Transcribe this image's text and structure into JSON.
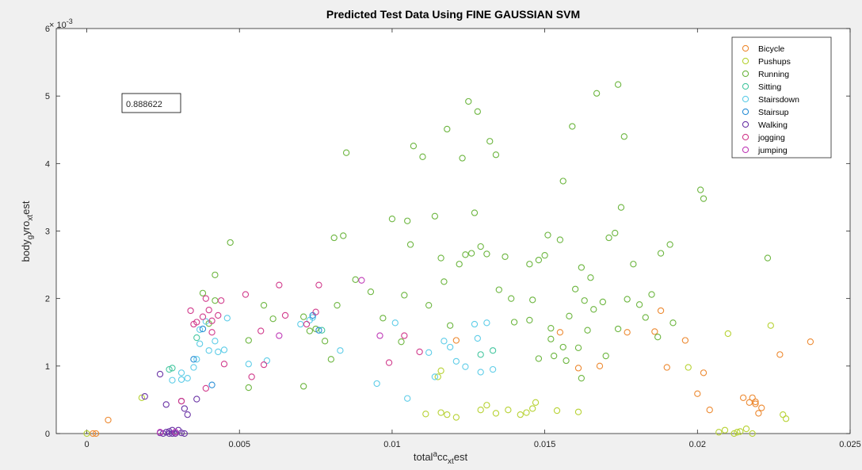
{
  "chart_data": {
    "type": "scatter",
    "title": "Predicted Test Data Using FINE GAUSSIAN SVM",
    "xlabel": "total_acc_x_test",
    "xlabel_parts": {
      "a": "total",
      "b": "a",
      "c": "cc",
      "d": "xt",
      "e": "est"
    },
    "ylabel": "body_gyro_x_test",
    "ylabel_parts": {
      "a": "body",
      "b": "g",
      "c": "yro",
      "d": "xt",
      "e": "est"
    },
    "y_exponent_base": "× 10",
    "y_exponent_power": "-3",
    "xlim": [
      -0.001,
      0.025
    ],
    "ylim": [
      0,
      6
    ],
    "y_multiplier": 0.001,
    "x_ticks": [
      0,
      0.005,
      0.01,
      0.015,
      0.02,
      0.025
    ],
    "x_tick_labels": [
      "0",
      "0.005",
      "0.01",
      "0.015",
      "0.02",
      "0.025"
    ],
    "y_ticks": [
      0,
      1,
      2,
      3,
      4,
      5,
      6
    ],
    "y_tick_labels": [
      "0",
      "1",
      "2",
      "3",
      "4",
      "5",
      "6"
    ],
    "grid": false,
    "legend_position": "top-right",
    "annotation": "0.888622",
    "series": [
      {
        "name": "Bicycle",
        "color": "#ed8a32",
        "points": [
          [
            0.0002,
            0
          ],
          [
            0.0003,
            0
          ],
          [
            0.0007,
            0.2
          ],
          [
            0.0121,
            1.38
          ],
          [
            0.0155,
            1.5
          ],
          [
            0.0161,
            0.97
          ],
          [
            0.0168,
            1.0
          ],
          [
            0.0177,
            1.5
          ],
          [
            0.0186,
            1.51
          ],
          [
            0.0188,
            1.82
          ],
          [
            0.019,
            0.98
          ],
          [
            0.0196,
            1.38
          ],
          [
            0.02,
            0.59
          ],
          [
            0.0202,
            0.9
          ],
          [
            0.0204,
            0.35
          ],
          [
            0.0215,
            0.53
          ],
          [
            0.0217,
            0.46
          ],
          [
            0.0218,
            0.53
          ],
          [
            0.0219,
            0.44
          ],
          [
            0.022,
            0.3
          ],
          [
            0.0221,
            0.38
          ],
          [
            0.0227,
            1.17
          ],
          [
            0.0237,
            1.36
          ],
          [
            0.0219,
            0.47
          ]
        ]
      },
      {
        "name": "Pushups",
        "color": "#b7d234",
        "points": [
          [
            0.0,
            0
          ],
          [
            0.0018,
            0.53
          ],
          [
            0.0111,
            0.29
          ],
          [
            0.0116,
            0.31
          ],
          [
            0.0118,
            0.28
          ],
          [
            0.0121,
            0.24
          ],
          [
            0.0129,
            0.35
          ],
          [
            0.0131,
            0.42
          ],
          [
            0.0134,
            0.3
          ],
          [
            0.0138,
            0.35
          ],
          [
            0.0142,
            0.28
          ],
          [
            0.0144,
            0.31
          ],
          [
            0.0146,
            0.37
          ],
          [
            0.0147,
            0.46
          ],
          [
            0.0154,
            0.34
          ],
          [
            0.0161,
            0.32
          ],
          [
            0.0197,
            0.98
          ],
          [
            0.021,
            1.48
          ],
          [
            0.0214,
            0.03
          ],
          [
            0.0216,
            0.07
          ],
          [
            0.0218,
            0.0
          ],
          [
            0.0224,
            1.6
          ],
          [
            0.0228,
            0.28
          ],
          [
            0.0229,
            0.22
          ],
          [
            0.0207,
            0.02
          ],
          [
            0.0209,
            0.05
          ],
          [
            0.0212,
            0.0
          ],
          [
            0.0213,
            0.02
          ],
          [
            0.0116,
            0.93
          ],
          [
            0.0115,
            0.84
          ]
        ]
      },
      {
        "name": "Running",
        "color": "#6db640",
        "points": [
          [
            0.0047,
            2.83
          ],
          [
            0.0042,
            2.35
          ],
          [
            0.0038,
            2.08
          ],
          [
            0.0042,
            1.97
          ],
          [
            0.004,
            1.63
          ],
          [
            0.0058,
            1.9
          ],
          [
            0.0053,
            1.38
          ],
          [
            0.0053,
            0.68
          ],
          [
            0.0061,
            1.7
          ],
          [
            0.0071,
            1.73
          ],
          [
            0.0071,
            0.7
          ],
          [
            0.0073,
            1.52
          ],
          [
            0.0075,
            1.55
          ],
          [
            0.0078,
            1.37
          ],
          [
            0.008,
            1.1
          ],
          [
            0.0082,
            1.9
          ],
          [
            0.0081,
            2.9
          ],
          [
            0.0084,
            2.93
          ],
          [
            0.0085,
            4.16
          ],
          [
            0.0088,
            2.28
          ],
          [
            0.0093,
            2.1
          ],
          [
            0.0097,
            1.71
          ],
          [
            0.01,
            3.18
          ],
          [
            0.0103,
            1.36
          ],
          [
            0.0104,
            2.05
          ],
          [
            0.0105,
            3.15
          ],
          [
            0.0106,
            2.8
          ],
          [
            0.0107,
            4.26
          ],
          [
            0.011,
            4.1
          ],
          [
            0.0112,
            1.9
          ],
          [
            0.0114,
            3.22
          ],
          [
            0.0116,
            2.6
          ],
          [
            0.0117,
            2.25
          ],
          [
            0.0118,
            4.51
          ],
          [
            0.0119,
            1.6
          ],
          [
            0.0122,
            2.51
          ],
          [
            0.0123,
            4.08
          ],
          [
            0.0124,
            2.65
          ],
          [
            0.0125,
            4.92
          ],
          [
            0.0126,
            2.67
          ],
          [
            0.0127,
            3.27
          ],
          [
            0.0128,
            4.77
          ],
          [
            0.0129,
            2.77
          ],
          [
            0.0131,
            2.66
          ],
          [
            0.0132,
            4.33
          ],
          [
            0.0134,
            4.13
          ],
          [
            0.0135,
            2.13
          ],
          [
            0.0137,
            2.62
          ],
          [
            0.0139,
            2.0
          ],
          [
            0.014,
            1.65
          ],
          [
            0.0145,
            2.51
          ],
          [
            0.0146,
            1.98
          ],
          [
            0.0148,
            2.57
          ],
          [
            0.015,
            2.64
          ],
          [
            0.0151,
            2.94
          ],
          [
            0.0152,
            1.4
          ],
          [
            0.0153,
            1.15
          ],
          [
            0.0155,
            2.87
          ],
          [
            0.0156,
            3.74
          ],
          [
            0.0157,
            1.08
          ],
          [
            0.0158,
            1.74
          ],
          [
            0.0159,
            4.55
          ],
          [
            0.016,
            2.14
          ],
          [
            0.0161,
            1.27
          ],
          [
            0.0162,
            2.46
          ],
          [
            0.0163,
            1.97
          ],
          [
            0.0164,
            1.53
          ],
          [
            0.0165,
            2.31
          ],
          [
            0.0166,
            1.84
          ],
          [
            0.0167,
            5.04
          ],
          [
            0.0169,
            1.95
          ],
          [
            0.017,
            1.15
          ],
          [
            0.0171,
            2.9
          ],
          [
            0.0173,
            2.97
          ],
          [
            0.0174,
            5.17
          ],
          [
            0.0174,
            1.55
          ],
          [
            0.0175,
            3.35
          ],
          [
            0.0176,
            4.4
          ],
          [
            0.0177,
            1.99
          ],
          [
            0.0179,
            2.51
          ],
          [
            0.0181,
            1.91
          ],
          [
            0.0183,
            1.72
          ],
          [
            0.0185,
            2.06
          ],
          [
            0.0187,
            1.43
          ],
          [
            0.0188,
            2.67
          ],
          [
            0.0191,
            2.8
          ],
          [
            0.0192,
            1.64
          ],
          [
            0.0201,
            3.61
          ],
          [
            0.0202,
            3.48
          ],
          [
            0.0223,
            2.6
          ],
          [
            0.0162,
            0.82
          ],
          [
            0.0145,
            1.68
          ],
          [
            0.0148,
            1.11
          ],
          [
            0.0152,
            1.56
          ],
          [
            0.0156,
            1.28
          ]
        ]
      },
      {
        "name": "Sitting",
        "color": "#46c7a0",
        "points": [
          [
            0.0027,
            0.95
          ],
          [
            0.0028,
            0.97
          ],
          [
            0.0036,
            1.42
          ],
          [
            0.0077,
            1.53
          ],
          [
            0.0129,
            1.17
          ],
          [
            0.0133,
            1.23
          ]
        ]
      },
      {
        "name": "Stairsdown",
        "color": "#5fcde8",
        "points": [
          [
            0.0028,
            0.79
          ],
          [
            0.0031,
            0.8
          ],
          [
            0.0031,
            0.9
          ],
          [
            0.0033,
            0.82
          ],
          [
            0.0035,
            0.98
          ],
          [
            0.0036,
            1.1
          ],
          [
            0.0037,
            1.33
          ],
          [
            0.0037,
            1.54
          ],
          [
            0.0039,
            1.66
          ],
          [
            0.004,
            1.23
          ],
          [
            0.0042,
            1.37
          ],
          [
            0.0043,
            1.21
          ],
          [
            0.0045,
            1.24
          ],
          [
            0.0046,
            1.71
          ],
          [
            0.0053,
            1.03
          ],
          [
            0.0059,
            1.08
          ],
          [
            0.007,
            1.62
          ],
          [
            0.0073,
            1.68
          ],
          [
            0.0074,
            1.72
          ],
          [
            0.0083,
            1.23
          ],
          [
            0.0095,
            0.74
          ],
          [
            0.0101,
            1.64
          ],
          [
            0.0105,
            0.52
          ],
          [
            0.0112,
            1.2
          ],
          [
            0.0114,
            0.84
          ],
          [
            0.0119,
            1.28
          ],
          [
            0.0121,
            1.07
          ],
          [
            0.0124,
            0.99
          ],
          [
            0.0127,
            1.62
          ],
          [
            0.0129,
            0.91
          ],
          [
            0.0131,
            1.64
          ],
          [
            0.0133,
            0.95
          ],
          [
            0.0128,
            1.41
          ],
          [
            0.0117,
            1.37
          ]
        ]
      },
      {
        "name": "Stairsup",
        "color": "#2b8fd6",
        "points": [
          [
            0.0035,
            1.1
          ],
          [
            0.0038,
            1.55
          ],
          [
            0.0041,
            0.72
          ],
          [
            0.0074,
            1.75
          ],
          [
            0.0076,
            1.53
          ]
        ]
      },
      {
        "name": "Walking",
        "color": "#6b35a6",
        "points": [
          [
            0.0019,
            0.55
          ],
          [
            0.0024,
            0.88
          ],
          [
            0.0026,
            0.43
          ],
          [
            0.0029,
            0.0
          ],
          [
            0.0025,
            0.0
          ],
          [
            0.0026,
            0.02
          ],
          [
            0.0027,
            0.0
          ],
          [
            0.0028,
            0.05
          ],
          [
            0.0029,
            0.02
          ],
          [
            0.003,
            0.05
          ],
          [
            0.0031,
            0.01
          ],
          [
            0.0032,
            0.0
          ],
          [
            0.0024,
            0.01
          ],
          [
            0.0027,
            0.03
          ],
          [
            0.0028,
            0.0
          ],
          [
            0.0031,
            0.48
          ],
          [
            0.0032,
            0.37
          ],
          [
            0.0033,
            0.28
          ],
          [
            0.0036,
            0.51
          ]
        ]
      },
      {
        "name": "jogging",
        "color": "#d13b8c",
        "points": [
          [
            0.0031,
            0.48
          ],
          [
            0.0034,
            1.82
          ],
          [
            0.0035,
            1.62
          ],
          [
            0.0036,
            1.65
          ],
          [
            0.0038,
            1.73
          ],
          [
            0.0039,
            2.0
          ],
          [
            0.004,
            1.83
          ],
          [
            0.0041,
            1.67
          ],
          [
            0.0041,
            1.5
          ],
          [
            0.0043,
            1.75
          ],
          [
            0.0044,
            1.97
          ],
          [
            0.0045,
            1.03
          ],
          [
            0.0052,
            2.06
          ],
          [
            0.0057,
            1.52
          ],
          [
            0.0063,
            2.2
          ],
          [
            0.0065,
            1.75
          ],
          [
            0.0072,
            1.62
          ],
          [
            0.0075,
            1.8
          ],
          [
            0.0076,
            2.2
          ],
          [
            0.0099,
            1.05
          ],
          [
            0.0104,
            1.45
          ],
          [
            0.0109,
            1.21
          ],
          [
            0.0039,
            0.67
          ],
          [
            0.0054,
            0.84
          ],
          [
            0.0058,
            1.02
          ]
        ]
      },
      {
        "name": "jumping",
        "color": "#c03db8",
        "points": [
          [
            0.0024,
            0.02
          ],
          [
            0.0029,
            0.02
          ],
          [
            0.0063,
            1.45
          ],
          [
            0.009,
            2.27
          ],
          [
            0.0096,
            1.45
          ]
        ]
      }
    ]
  }
}
